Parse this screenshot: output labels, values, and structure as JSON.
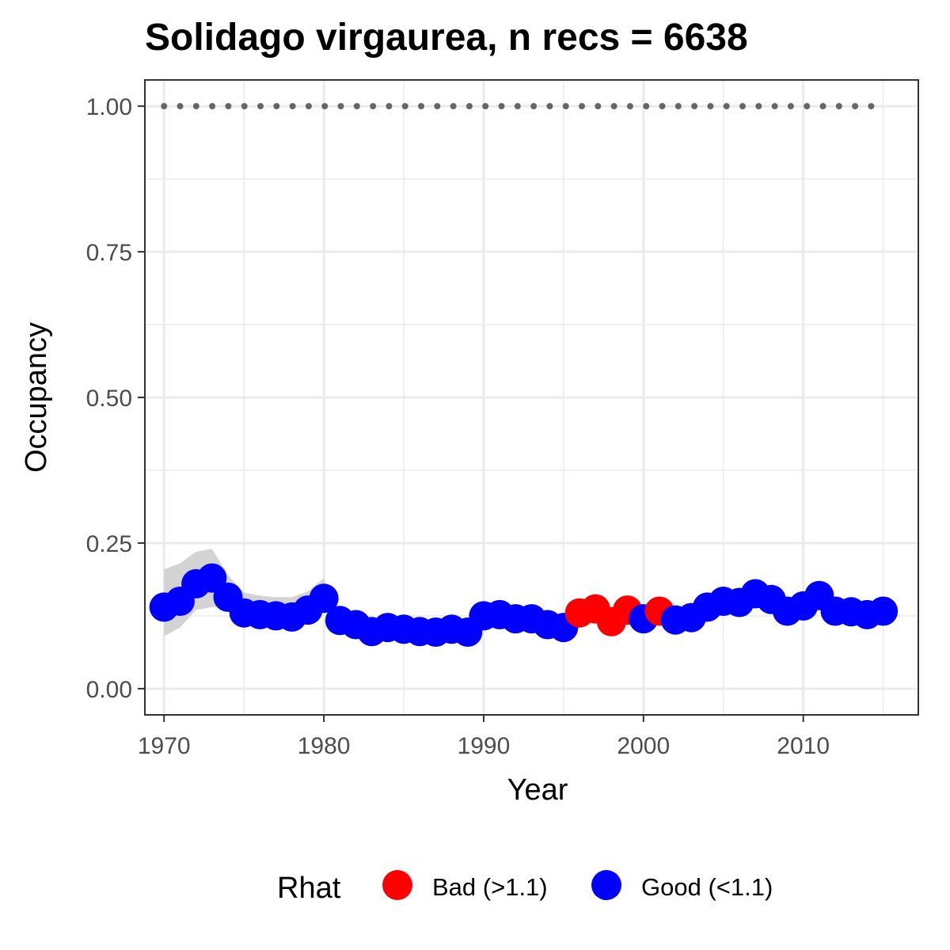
{
  "chart_data": {
    "type": "line",
    "title": "Solidago virgaurea, n recs = 6638",
    "xlabel": "Year",
    "ylabel": "Occupancy",
    "xlim": [
      1968.8,
      2017.2
    ],
    "ylim": [
      -0.045,
      1.045
    ],
    "x_ticks": [
      1970,
      1980,
      1990,
      2000,
      2010
    ],
    "x_tick_labels": [
      "1970",
      "1980",
      "1990",
      "2000",
      "2010"
    ],
    "y_ticks": [
      0,
      0.25,
      0.5,
      0.75,
      1.0
    ],
    "y_tick_labels": [
      "0.00",
      "0.25",
      "0.50",
      "0.75",
      "1.00"
    ],
    "grid": true,
    "legend_position": "bottom",
    "legend": {
      "title": "Rhat",
      "items": [
        {
          "label": "Bad (>1.1)",
          "color": "#ff0000"
        },
        {
          "label": "Good (<1.1)",
          "color": "#0000ff"
        }
      ]
    },
    "colors": {
      "bad": "#ff0000",
      "good": "#0000ff",
      "ribbon": "#d3d3d3",
      "dotted_line": "#666666"
    },
    "reference_line": {
      "y": 1.0,
      "style": "dotted",
      "x_range": [
        1970,
        2015
      ]
    },
    "x": [
      1970,
      1971,
      1972,
      1973,
      1974,
      1975,
      1976,
      1977,
      1978,
      1979,
      1980,
      1981,
      1982,
      1983,
      1984,
      1985,
      1986,
      1987,
      1988,
      1989,
      1990,
      1991,
      1992,
      1993,
      1994,
      1995,
      1996,
      1997,
      1998,
      1999,
      2000,
      2001,
      2002,
      2003,
      2004,
      2005,
      2006,
      2007,
      2008,
      2009,
      2010,
      2011,
      2012,
      2013,
      2014,
      2015
    ],
    "y": [
      0.14,
      0.15,
      0.18,
      0.19,
      0.157,
      0.13,
      0.127,
      0.125,
      0.123,
      0.135,
      0.155,
      0.117,
      0.11,
      0.098,
      0.105,
      0.102,
      0.098,
      0.097,
      0.102,
      0.097,
      0.125,
      0.127,
      0.12,
      0.12,
      0.11,
      0.105,
      0.13,
      0.137,
      0.115,
      0.135,
      0.12,
      0.133,
      0.118,
      0.122,
      0.14,
      0.15,
      0.148,
      0.163,
      0.153,
      0.133,
      0.142,
      0.16,
      0.133,
      0.132,
      0.127,
      0.133
    ],
    "rhat": [
      "Good",
      "Good",
      "Good",
      "Good",
      "Good",
      "Good",
      "Good",
      "Good",
      "Good",
      "Good",
      "Good",
      "Good",
      "Good",
      "Good",
      "Good",
      "Good",
      "Good",
      "Good",
      "Good",
      "Good",
      "Good",
      "Good",
      "Good",
      "Good",
      "Good",
      "Good",
      "Bad",
      "Bad",
      "Bad",
      "Bad",
      "Good",
      "Bad",
      "Good",
      "Good",
      "Good",
      "Good",
      "Good",
      "Good",
      "Good",
      "Good",
      "Good",
      "Good",
      "Good",
      "Good",
      "Good",
      "Good"
    ],
    "ribbon_lower": [
      0.09,
      0.105,
      0.135,
      0.14,
      0.14,
      0.125,
      0.125,
      0.123,
      0.122,
      0.13,
      0.14,
      0.117,
      0.11,
      0.098,
      0.105,
      0.102,
      0.098,
      0.097,
      0.102,
      0.097,
      0.125,
      0.127,
      0.12,
      0.12,
      0.11,
      0.105,
      0.13,
      0.137,
      0.115,
      0.135,
      0.12,
      0.133,
      0.118,
      0.122,
      0.14,
      0.15,
      0.148,
      0.163,
      0.153,
      0.133,
      0.142,
      0.16,
      0.133,
      0.132,
      0.127,
      0.133
    ],
    "ribbon_upper": [
      0.205,
      0.215,
      0.235,
      0.24,
      0.195,
      0.165,
      0.16,
      0.157,
      0.157,
      0.167,
      0.19,
      0.117,
      0.11,
      0.098,
      0.105,
      0.102,
      0.098,
      0.097,
      0.102,
      0.097,
      0.125,
      0.127,
      0.12,
      0.12,
      0.11,
      0.105,
      0.13,
      0.137,
      0.115,
      0.135,
      0.12,
      0.133,
      0.118,
      0.122,
      0.14,
      0.15,
      0.148,
      0.163,
      0.153,
      0.133,
      0.142,
      0.16,
      0.133,
      0.132,
      0.127,
      0.133
    ]
  }
}
